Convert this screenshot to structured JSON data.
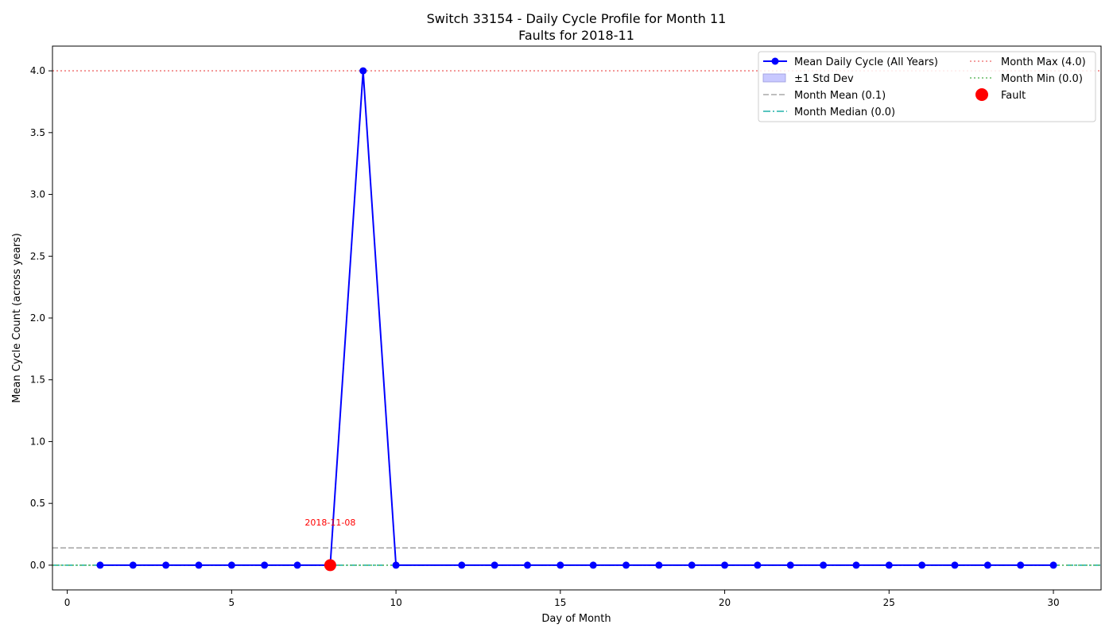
{
  "chart_data": {
    "type": "line",
    "title": "Switch 33154 - Daily Cycle Profile for Month 11",
    "subtitle": "Faults for 2018-11",
    "xlabel": "Day of Month",
    "ylabel": "Mean Cycle Count (across years)",
    "xlim": [
      -0.45,
      31.45
    ],
    "ylim": [
      -0.2,
      4.2
    ],
    "x_ticks": [
      0,
      5,
      10,
      15,
      20,
      25,
      30
    ],
    "y_ticks": [
      0.0,
      0.5,
      1.0,
      1.5,
      2.0,
      2.5,
      3.0,
      3.5,
      4.0
    ],
    "grid": false,
    "legend_position": "top-right",
    "series": [
      {
        "name": "Mean Daily Cycle (All Years)",
        "color": "#0000ff",
        "x": [
          1,
          2,
          3,
          4,
          5,
          6,
          7,
          8,
          9,
          10,
          12,
          13,
          14,
          15,
          16,
          17,
          18,
          19,
          20,
          21,
          22,
          23,
          24,
          25,
          26,
          27,
          28,
          29,
          30
        ],
        "y": [
          0,
          0,
          0,
          0,
          0,
          0,
          0,
          0,
          4,
          0,
          0,
          0,
          0,
          0,
          0,
          0,
          0,
          0,
          0,
          0,
          0,
          0,
          0,
          0,
          0,
          0,
          0,
          0,
          0
        ]
      }
    ],
    "reference_lines": [
      {
        "name": "Month Mean (0.1)",
        "value": 0.14,
        "color": "#a9a9a9",
        "style": "dashed"
      },
      {
        "name": "Month Median (0.0)",
        "value": 0.0,
        "color": "#20b2aa",
        "style": "dashdot"
      },
      {
        "name": "Month Max (4.0)",
        "value": 4.0,
        "color": "#f08080",
        "style": "dotted"
      },
      {
        "name": "Month Min (0.0)",
        "value": 0.0,
        "color": "#66bb66",
        "style": "dotted"
      }
    ],
    "std_band": {
      "name": "±1 Std Dev",
      "color": "#c8c8ff"
    },
    "faults": [
      {
        "name": "Fault",
        "x": 8,
        "y": 0,
        "label": "2018-11-08",
        "color": "#ff0000"
      }
    ]
  }
}
